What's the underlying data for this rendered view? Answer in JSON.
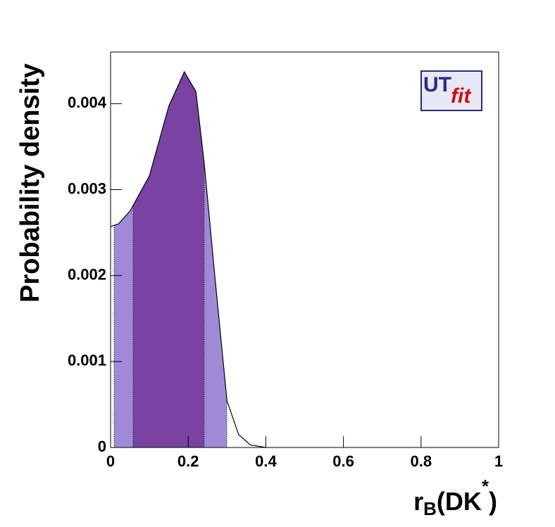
{
  "chart_data": {
    "type": "area",
    "x_label_parts": [
      "r",
      "B",
      "(DK",
      "*",
      ")"
    ],
    "y_label": "Probability density",
    "logo": [
      "UT",
      "fit"
    ],
    "x": [
      0,
      0.02,
      0.05,
      0.1,
      0.15,
      0.19,
      0.22,
      0.2414,
      0.27,
      0.3,
      0.33,
      0.36,
      0.4
    ],
    "values": [
      0.00257,
      0.0026,
      0.00275,
      0.00316,
      0.00397,
      0.00437,
      0.00414,
      0.0033,
      0.00193,
      0.00054,
      0.00015,
      3e-05,
      0
    ],
    "line_color": "#000000",
    "intervals": [
      {
        "from": 0.009,
        "to": 0.2995,
        "color": "#a08ad8"
      },
      {
        "from": 0.058,
        "to": 0.241,
        "color": "#7a42a3"
      }
    ],
    "xlim": [
      0,
      1
    ],
    "xticks": [
      0,
      0.2,
      0.4,
      0.6,
      0.8,
      1
    ],
    "ylim": [
      0,
      0.0046
    ],
    "yticks": [
      0,
      0.001,
      0.002,
      0.003,
      0.004
    ]
  }
}
